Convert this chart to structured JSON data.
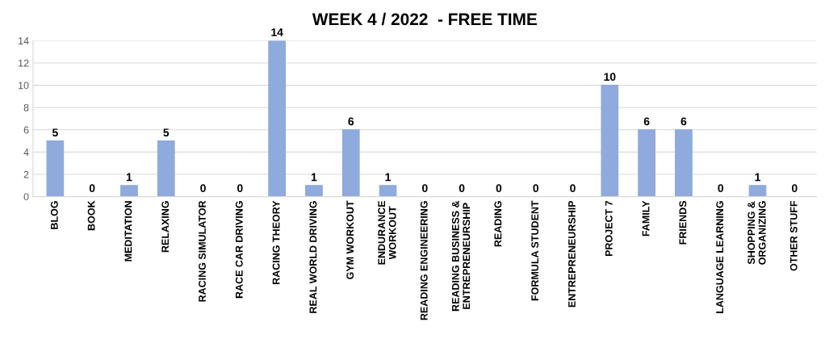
{
  "chart_data": {
    "type": "bar",
    "title": "WEEK 4 / 2022  - FREE TIME",
    "categories": [
      "BLOG",
      "BOOK",
      "MEDITATION",
      "RELAXING",
      "RACING SIMULATOR",
      "RACE CAR DRIVING",
      "RACING THEORY",
      "REAL WORLD DRIVING",
      "GYM WORKOUT",
      "ENDURANCE\nWORKOUT",
      "READING ENGINEERING",
      "READING BUSINESS &\nENTREPRENEURSHIP",
      "READING",
      "FORMULA STUDENT",
      "ENTREPRENEURSHIP",
      "PROJECT 7",
      "FAMILY",
      "FRIENDS",
      "LANGUAGE LEARNING",
      "SHOPPING &\nORGANIZING",
      "OTHER STUFF"
    ],
    "values": [
      5,
      0,
      1,
      5,
      0,
      0,
      14,
      1,
      6,
      1,
      0,
      0,
      0,
      0,
      0,
      10,
      6,
      6,
      0,
      1,
      0
    ],
    "color": "#8faadc",
    "ylim": [
      0,
      14
    ],
    "yticks": [
      0,
      2,
      4,
      6,
      8,
      10,
      12,
      14
    ],
    "grid": "y",
    "data_labels": true,
    "legend": false
  }
}
